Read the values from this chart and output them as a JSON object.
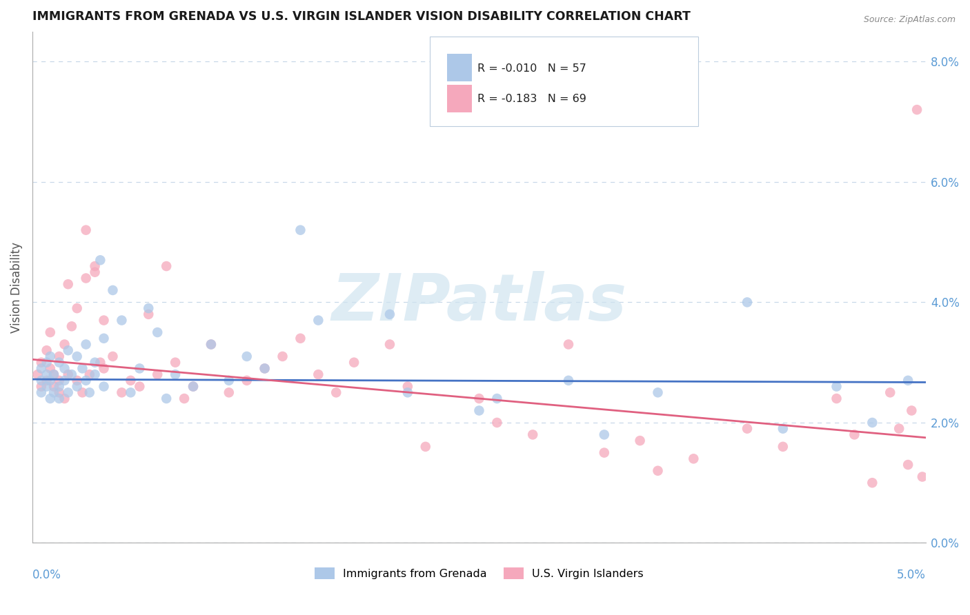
{
  "title": "IMMIGRANTS FROM GRENADA VS U.S. VIRGIN ISLANDER VISION DISABILITY CORRELATION CHART",
  "source": "Source: ZipAtlas.com",
  "ylabel": "Vision Disability",
  "xlim": [
    0.0,
    5.0
  ],
  "ylim": [
    0.0,
    8.5
  ],
  "ytick_vals": [
    0.0,
    2.0,
    4.0,
    6.0,
    8.0
  ],
  "blue_R": -0.01,
  "blue_N": 57,
  "pink_R": -0.183,
  "pink_N": 69,
  "blue_color": "#adc8e8",
  "pink_color": "#f5a8bc",
  "blue_line_color": "#4472c4",
  "pink_line_color": "#e06080",
  "watermark": "ZIPatlas",
  "legend_label_blue": "Immigrants from Grenada",
  "legend_label_pink": "U.S. Virgin Islanders",
  "grid_color": "#c8d8e8",
  "blue_x": [
    0.05,
    0.05,
    0.05,
    0.08,
    0.08,
    0.08,
    0.1,
    0.1,
    0.1,
    0.12,
    0.12,
    0.15,
    0.15,
    0.15,
    0.18,
    0.18,
    0.2,
    0.2,
    0.22,
    0.25,
    0.25,
    0.28,
    0.3,
    0.3,
    0.32,
    0.35,
    0.35,
    0.38,
    0.4,
    0.4,
    0.45,
    0.5,
    0.55,
    0.6,
    0.65,
    0.7,
    0.75,
    0.8,
    0.9,
    1.0,
    1.1,
    1.2,
    1.3,
    1.5,
    1.6,
    2.0,
    2.1,
    2.5,
    2.6,
    3.0,
    3.2,
    3.5,
    4.0,
    4.2,
    4.5,
    4.7,
    4.9
  ],
  "blue_y": [
    2.7,
    2.5,
    2.9,
    2.6,
    2.8,
    3.0,
    2.4,
    2.7,
    3.1,
    2.5,
    2.8,
    2.6,
    3.0,
    2.4,
    2.9,
    2.7,
    3.2,
    2.5,
    2.8,
    3.1,
    2.6,
    2.9,
    2.7,
    3.3,
    2.5,
    3.0,
    2.8,
    4.7,
    2.6,
    3.4,
    4.2,
    3.7,
    2.5,
    2.9,
    3.9,
    3.5,
    2.4,
    2.8,
    2.6,
    3.3,
    2.7,
    3.1,
    2.9,
    5.2,
    3.7,
    3.8,
    2.5,
    2.2,
    2.4,
    2.7,
    1.8,
    2.5,
    4.0,
    1.9,
    2.6,
    2.0,
    2.7
  ],
  "pink_x": [
    0.03,
    0.05,
    0.05,
    0.08,
    0.08,
    0.1,
    0.1,
    0.12,
    0.12,
    0.15,
    0.15,
    0.15,
    0.18,
    0.18,
    0.2,
    0.2,
    0.22,
    0.25,
    0.25,
    0.28,
    0.3,
    0.3,
    0.32,
    0.35,
    0.35,
    0.38,
    0.4,
    0.4,
    0.45,
    0.5,
    0.55,
    0.6,
    0.65,
    0.7,
    0.75,
    0.8,
    0.85,
    0.9,
    1.0,
    1.1,
    1.2,
    1.3,
    1.4,
    1.5,
    1.6,
    1.7,
    1.8,
    2.0,
    2.1,
    2.2,
    2.5,
    2.6,
    2.8,
    3.0,
    3.2,
    3.4,
    3.5,
    3.7,
    4.0,
    4.2,
    4.5,
    4.6,
    4.7,
    4.8,
    4.85,
    4.9,
    4.92,
    4.95,
    4.98
  ],
  "pink_y": [
    2.8,
    3.0,
    2.6,
    2.7,
    3.2,
    2.9,
    3.5,
    2.6,
    2.8,
    3.1,
    2.5,
    2.7,
    3.3,
    2.4,
    4.3,
    2.8,
    3.6,
    2.7,
    3.9,
    2.5,
    5.2,
    4.4,
    2.8,
    4.5,
    4.6,
    3.0,
    3.7,
    2.9,
    3.1,
    2.5,
    2.7,
    2.6,
    3.8,
    2.8,
    4.6,
    3.0,
    2.4,
    2.6,
    3.3,
    2.5,
    2.7,
    2.9,
    3.1,
    3.4,
    2.8,
    2.5,
    3.0,
    3.3,
    2.6,
    1.6,
    2.4,
    2.0,
    1.8,
    3.3,
    1.5,
    1.7,
    1.2,
    1.4,
    1.9,
    1.6,
    2.4,
    1.8,
    1.0,
    2.5,
    1.9,
    1.3,
    2.2,
    7.2,
    1.1
  ]
}
